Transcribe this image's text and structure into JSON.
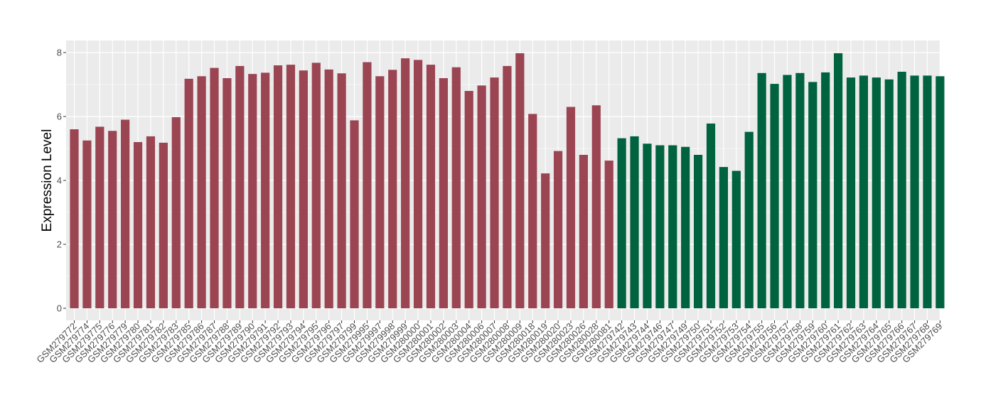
{
  "chart_data": {
    "type": "bar",
    "title": "",
    "xlabel": "",
    "ylabel": "Expression Level",
    "ylim": [
      0,
      8
    ],
    "yticks": [
      0,
      2,
      4,
      6,
      8
    ],
    "grid": true,
    "legend": "none",
    "colors": {
      "group_a": "#9b4452",
      "group_b": "#006340",
      "panel_bg": "#ebebeb",
      "grid": "#ffffff"
    },
    "categories": [
      "GSM279772",
      "GSM279774",
      "GSM279775",
      "GSM279776",
      "GSM279779",
      "GSM279780",
      "GSM279781",
      "GSM279782",
      "GSM279783",
      "GSM279785",
      "GSM279786",
      "GSM279787",
      "GSM279788",
      "GSM279789",
      "GSM279790",
      "GSM279791",
      "GSM279792",
      "GSM279793",
      "GSM279794",
      "GSM279795",
      "GSM279796",
      "GSM279797",
      "GSM279799",
      "GSM279995",
      "GSM279997",
      "GSM279998",
      "GSM279999",
      "GSM280000",
      "GSM280001",
      "GSM280002",
      "GSM280003",
      "GSM280004",
      "GSM280006",
      "GSM280007",
      "GSM280008",
      "GSM280009",
      "GSM280018",
      "GSM280019",
      "GSM280020",
      "GSM280023",
      "GSM280026",
      "GSM280028",
      "GSM280081",
      "GSM279742",
      "GSM279743",
      "GSM279744",
      "GSM279746",
      "GSM279747",
      "GSM279749",
      "GSM279750",
      "GSM279751",
      "GSM279752",
      "GSM279753",
      "GSM279754",
      "GSM279755",
      "GSM279756",
      "GSM279757",
      "GSM279758",
      "GSM279759",
      "GSM279760",
      "GSM279761",
      "GSM279762",
      "GSM279763",
      "GSM279764",
      "GSM279765",
      "GSM279766",
      "GSM279767",
      "GSM279768",
      "GSM279769"
    ],
    "values": [
      5.6,
      5.25,
      5.68,
      5.55,
      5.9,
      5.2,
      5.38,
      5.18,
      5.98,
      7.18,
      7.26,
      7.52,
      7.2,
      7.58,
      7.33,
      7.37,
      7.6,
      7.62,
      7.44,
      7.68,
      7.47,
      7.35,
      5.88,
      7.7,
      7.26,
      7.46,
      7.82,
      7.77,
      7.62,
      7.2,
      7.54,
      6.8,
      6.97,
      7.22,
      7.58,
      7.98,
      6.08,
      4.22,
      4.92,
      6.3,
      4.8,
      6.35,
      4.62,
      5.32,
      5.38,
      5.15,
      5.1,
      5.1,
      5.05,
      4.8,
      5.78,
      4.42,
      4.3,
      5.52,
      7.36,
      7.02,
      7.3,
      7.36,
      7.08,
      7.38,
      7.98,
      7.22,
      7.28,
      7.22,
      7.16,
      7.4,
      7.28,
      7.28,
      7.26
    ],
    "groups": [
      "a",
      "a",
      "a",
      "a",
      "a",
      "a",
      "a",
      "a",
      "a",
      "a",
      "a",
      "a",
      "a",
      "a",
      "a",
      "a",
      "a",
      "a",
      "a",
      "a",
      "a",
      "a",
      "a",
      "a",
      "a",
      "a",
      "a",
      "a",
      "a",
      "a",
      "a",
      "a",
      "a",
      "a",
      "a",
      "a",
      "a",
      "a",
      "a",
      "a",
      "a",
      "a",
      "a",
      "b",
      "b",
      "b",
      "b",
      "b",
      "b",
      "b",
      "b",
      "b",
      "b",
      "b",
      "b",
      "b",
      "b",
      "b",
      "b",
      "b",
      "b",
      "b",
      "b",
      "b",
      "b",
      "b",
      "b",
      "b",
      "b"
    ]
  }
}
